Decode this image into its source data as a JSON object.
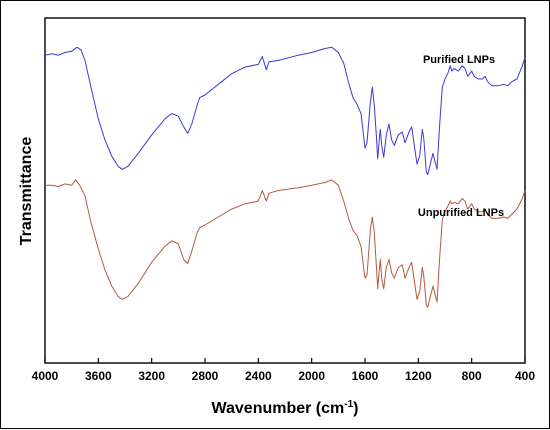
{
  "chart_data": {
    "type": "line",
    "title": "",
    "xlabel": "Wavenumber (cm",
    "xlabel_sup": "-1",
    "xlabel_end": ")",
    "ylabel": "Transmittance",
    "xlim": [
      4000,
      400
    ],
    "x_reversed": true,
    "xticks": [
      "4000",
      "3600",
      "3200",
      "2800",
      "2400",
      "2000",
      "1600",
      "1200",
      "800",
      "400"
    ],
    "grid": false,
    "series": [
      {
        "name": "Purified LNPs",
        "color": "#3a3ad6",
        "points": [
          [
            4000,
            86
          ],
          [
            3950,
            86.5
          ],
          [
            3900,
            86
          ],
          [
            3850,
            87
          ],
          [
            3800,
            87.5
          ],
          [
            3760,
            89
          ],
          [
            3730,
            88
          ],
          [
            3700,
            84
          ],
          [
            3660,
            75
          ],
          [
            3600,
            62
          ],
          [
            3550,
            54
          ],
          [
            3500,
            48
          ],
          [
            3450,
            44
          ],
          [
            3420,
            43
          ],
          [
            3380,
            44
          ],
          [
            3300,
            49
          ],
          [
            3200,
            56
          ],
          [
            3100,
            62
          ],
          [
            3050,
            64
          ],
          [
            3000,
            63
          ],
          [
            2960,
            59
          ],
          [
            2930,
            56.5
          ],
          [
            2900,
            60
          ],
          [
            2860,
            67
          ],
          [
            2840,
            70
          ],
          [
            2800,
            71
          ],
          [
            2700,
            75
          ],
          [
            2600,
            79
          ],
          [
            2500,
            81.5
          ],
          [
            2400,
            82.5
          ],
          [
            2370,
            85.5
          ],
          [
            2340,
            80.5
          ],
          [
            2320,
            83.5
          ],
          [
            2250,
            84
          ],
          [
            2100,
            86
          ],
          [
            2000,
            87
          ],
          [
            1900,
            88.5
          ],
          [
            1850,
            89
          ],
          [
            1800,
            87
          ],
          [
            1760,
            83
          ],
          [
            1720,
            75
          ],
          [
            1690,
            70
          ],
          [
            1660,
            67.5
          ],
          [
            1630,
            64
          ],
          [
            1600,
            51
          ],
          [
            1585,
            53
          ],
          [
            1560,
            68
          ],
          [
            1545,
            74
          ],
          [
            1530,
            67
          ],
          [
            1515,
            56
          ],
          [
            1505,
            47
          ],
          [
            1495,
            53
          ],
          [
            1485,
            58
          ],
          [
            1475,
            52
          ],
          [
            1460,
            47.5
          ],
          [
            1440,
            56
          ],
          [
            1420,
            60
          ],
          [
            1400,
            54
          ],
          [
            1380,
            52
          ],
          [
            1350,
            56
          ],
          [
            1320,
            57
          ],
          [
            1300,
            53
          ],
          [
            1270,
            57
          ],
          [
            1250,
            59
          ],
          [
            1230,
            52
          ],
          [
            1210,
            45
          ],
          [
            1190,
            48
          ],
          [
            1170,
            58
          ],
          [
            1160,
            55
          ],
          [
            1140,
            42
          ],
          [
            1130,
            41
          ],
          [
            1110,
            45
          ],
          [
            1090,
            49
          ],
          [
            1080,
            47
          ],
          [
            1060,
            43
          ],
          [
            1040,
            60
          ],
          [
            1020,
            74
          ],
          [
            1000,
            77
          ],
          [
            980,
            79
          ],
          [
            960,
            82
          ],
          [
            950,
            80
          ],
          [
            930,
            81
          ],
          [
            900,
            80
          ],
          [
            870,
            82
          ],
          [
            850,
            81
          ],
          [
            830,
            78
          ],
          [
            800,
            80
          ],
          [
            780,
            78
          ],
          [
            750,
            77
          ],
          [
            720,
            77
          ],
          [
            700,
            78
          ],
          [
            680,
            76
          ],
          [
            650,
            74.5
          ],
          [
            600,
            74.5
          ],
          [
            560,
            75
          ],
          [
            530,
            74.5
          ],
          [
            500,
            76
          ],
          [
            460,
            77
          ],
          [
            420,
            82
          ],
          [
            400,
            85
          ]
        ]
      },
      {
        "name": "Unpurified LNPs",
        "color": "#b5593f",
        "points": [
          [
            4000,
            37
          ],
          [
            3950,
            37
          ],
          [
            3900,
            36.5
          ],
          [
            3850,
            37.5
          ],
          [
            3800,
            37
          ],
          [
            3770,
            39
          ],
          [
            3740,
            37
          ],
          [
            3700,
            33
          ],
          [
            3660,
            24
          ],
          [
            3600,
            13
          ],
          [
            3550,
            5
          ],
          [
            3500,
            -1
          ],
          [
            3450,
            -5
          ],
          [
            3420,
            -6
          ],
          [
            3380,
            -5
          ],
          [
            3300,
            0
          ],
          [
            3200,
            8
          ],
          [
            3100,
            14
          ],
          [
            3050,
            16
          ],
          [
            3000,
            15
          ],
          [
            2960,
            9
          ],
          [
            2930,
            7.5
          ],
          [
            2900,
            12
          ],
          [
            2860,
            19
          ],
          [
            2840,
            21
          ],
          [
            2800,
            22
          ],
          [
            2700,
            25
          ],
          [
            2600,
            28
          ],
          [
            2500,
            30
          ],
          [
            2400,
            31
          ],
          [
            2370,
            35
          ],
          [
            2340,
            31
          ],
          [
            2320,
            34
          ],
          [
            2250,
            35
          ],
          [
            2100,
            36
          ],
          [
            2000,
            37
          ],
          [
            1900,
            38
          ],
          [
            1850,
            39
          ],
          [
            1800,
            37
          ],
          [
            1760,
            31
          ],
          [
            1720,
            24
          ],
          [
            1690,
            20
          ],
          [
            1660,
            18
          ],
          [
            1630,
            14
          ],
          [
            1600,
            2
          ],
          [
            1585,
            3
          ],
          [
            1560,
            20
          ],
          [
            1545,
            25
          ],
          [
            1530,
            19
          ],
          [
            1515,
            7
          ],
          [
            1505,
            -2
          ],
          [
            1495,
            4
          ],
          [
            1485,
            9
          ],
          [
            1475,
            2
          ],
          [
            1460,
            -2
          ],
          [
            1440,
            6
          ],
          [
            1420,
            9
          ],
          [
            1400,
            4
          ],
          [
            1380,
            2
          ],
          [
            1350,
            6
          ],
          [
            1320,
            7
          ],
          [
            1300,
            2
          ],
          [
            1270,
            6
          ],
          [
            1250,
            8
          ],
          [
            1230,
            1
          ],
          [
            1210,
            -6
          ],
          [
            1190,
            -3
          ],
          [
            1170,
            6
          ],
          [
            1160,
            3
          ],
          [
            1140,
            -8
          ],
          [
            1130,
            -9
          ],
          [
            1110,
            -5
          ],
          [
            1090,
            -1
          ],
          [
            1080,
            -3
          ],
          [
            1060,
            -7
          ],
          [
            1040,
            10
          ],
          [
            1020,
            24
          ],
          [
            1000,
            27
          ],
          [
            980,
            29
          ],
          [
            960,
            31
          ],
          [
            950,
            30
          ],
          [
            930,
            30.5
          ],
          [
            900,
            30
          ],
          [
            870,
            32
          ],
          [
            850,
            31
          ],
          [
            830,
            28
          ],
          [
            800,
            30
          ],
          [
            780,
            28
          ],
          [
            750,
            27
          ],
          [
            720,
            27
          ],
          [
            700,
            28
          ],
          [
            680,
            26
          ],
          [
            650,
            24.5
          ],
          [
            600,
            24.5
          ],
          [
            560,
            25
          ],
          [
            530,
            24.5
          ],
          [
            500,
            26
          ],
          [
            460,
            28
          ],
          [
            420,
            32
          ],
          [
            400,
            35
          ]
        ]
      }
    ]
  }
}
